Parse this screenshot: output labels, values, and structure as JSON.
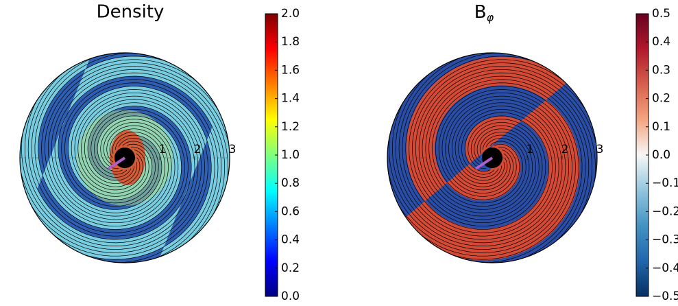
{
  "chart_data": [
    {
      "type": "polar-map",
      "title": "Density",
      "rlim": [
        0,
        3
      ],
      "rticks": [
        1,
        2,
        3
      ],
      "colorbar": {
        "ylim": [
          0,
          2
        ],
        "yticks": [
          {
            "value": 0,
            "label": "0.0"
          },
          0.2,
          0.4,
          0.6,
          0.8,
          {
            "value": 1,
            "label": "1.0"
          },
          1.2,
          1.4,
          1.6,
          1.8,
          {
            "value": 2,
            "label": "2.0"
          }
        ],
        "colormap": [
          "#00007f",
          "#0000ff",
          "#007fff",
          "#00ffff",
          "#7fff7f",
          "#ffff00",
          "#ff7f00",
          "#ff0000",
          "#7f0000"
        ]
      }
    },
    {
      "type": "polar-map",
      "title": "B",
      "title_subscript": "φ",
      "rlim": [
        0,
        3
      ],
      "rticks": [
        1,
        2,
        3
      ],
      "colorbar": {
        "ylim": [
          -0.5,
          0.5
        ],
        "yticks": [
          {
            "value": -0.5,
            "label": "−0.5"
          },
          {
            "value": -0.4,
            "label": "−0.4"
          },
          {
            "value": -0.3,
            "label": "−0.3"
          },
          {
            "value": -0.2,
            "label": "−0.2"
          },
          {
            "value": -0.1,
            "label": "−0.1"
          },
          {
            "value": 0,
            "label": "0.0"
          },
          0.1,
          0.2,
          0.3,
          0.4,
          0.5
        ],
        "colormap": [
          "#053061",
          "#2166ac",
          "#4393c3",
          "#92c5de",
          "#f7f7f7",
          "#f4a582",
          "#d6604d",
          "#b2182b",
          "#67001f"
        ]
      }
    }
  ]
}
